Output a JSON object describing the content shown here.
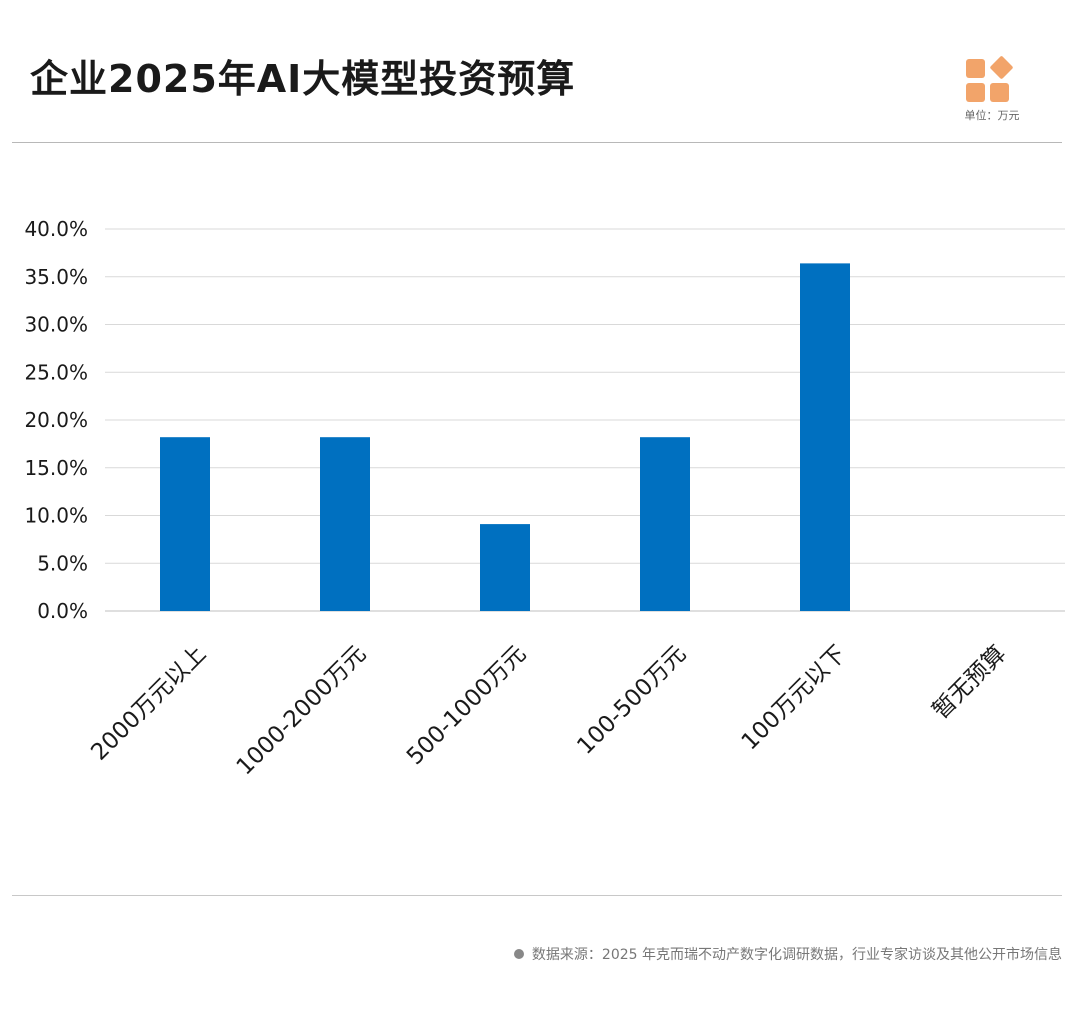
{
  "header": {
    "title": "企业2025年AI大模型投资预算",
    "unit": "单位：万元"
  },
  "footer": {
    "source": "数据来源：2025 年克而瑞不动产数字化调研数据，行业专家访谈及其他公开市场信息"
  },
  "colors": {
    "bar": "#0070C0",
    "logo": "#F2A46A",
    "grid": "#d9d9d9"
  },
  "chart_data": {
    "type": "bar",
    "title": "企业2025年AI大模型投资预算",
    "categories": [
      "2000万元以上",
      "1000-2000万元",
      "500-1000万元",
      "100-500万元",
      "100万元以下",
      "暂无预算"
    ],
    "values": [
      18.2,
      18.2,
      9.1,
      18.2,
      36.4,
      0
    ],
    "ylim": [
      0,
      40
    ],
    "yticks": [
      0,
      5,
      10,
      15,
      20,
      25,
      30,
      35,
      40
    ],
    "ytick_labels": [
      "0.0%",
      "5.0%",
      "10.0%",
      "15.0%",
      "20.0%",
      "25.0%",
      "30.0%",
      "35.0%",
      "40.0%"
    ],
    "xlabel": "",
    "ylabel": "",
    "grid": true,
    "legend": "none"
  }
}
